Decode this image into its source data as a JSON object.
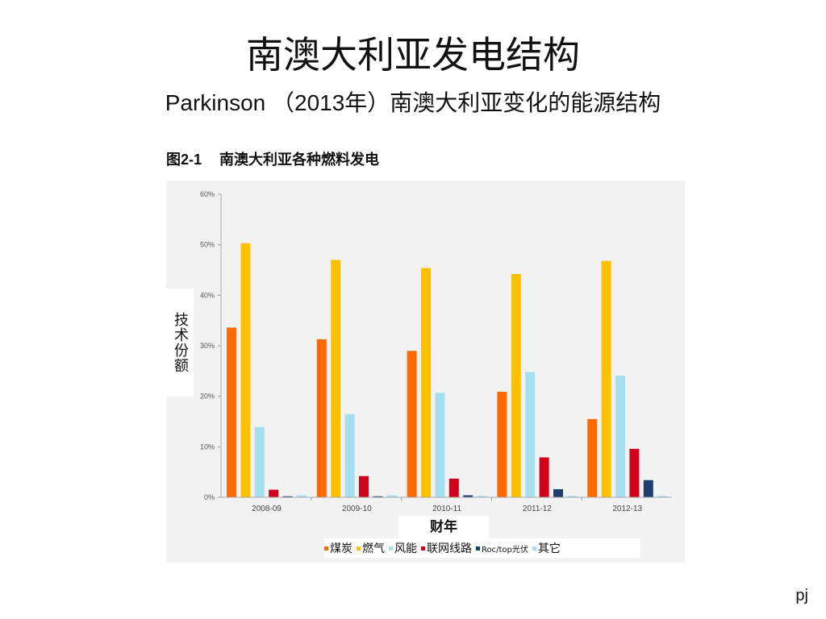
{
  "slide": {
    "title": "南澳大利亚发电结构",
    "subtitle": "Parkinson （2013年）南澳大利亚变化的能源结构",
    "page_mark": "pj"
  },
  "figure": {
    "number": "图2-1",
    "caption": "南澳大利亚各种燃料发电"
  },
  "chart_data": {
    "type": "bar",
    "categories": [
      "2008-09",
      "2009-10",
      "2010-11",
      "2011-12",
      "2012-13"
    ],
    "series": [
      {
        "name": "煤炭",
        "color": "#ff6a00",
        "values": [
          33.6,
          31.3,
          29.0,
          20.9,
          15.5
        ]
      },
      {
        "name": "燃气",
        "color": "#ffc000",
        "values": [
          50.3,
          47.0,
          45.4,
          44.2,
          46.8
        ]
      },
      {
        "name": "风能",
        "color": "#a6e0f0",
        "values": [
          13.9,
          16.5,
          20.7,
          24.8,
          24.1
        ]
      },
      {
        "name": "联网线路",
        "color": "#d0021b",
        "values": [
          1.5,
          4.2,
          3.7,
          7.9,
          9.6
        ]
      },
      {
        "name": "Roc/top光伏",
        "color": "#1f3e6e",
        "values": [
          0.2,
          0.2,
          0.4,
          1.6,
          3.4
        ]
      },
      {
        "name": "其它",
        "color": "#a6e0f0",
        "values": [
          0.4,
          0.4,
          0.3,
          0.3,
          0.3
        ]
      }
    ],
    "yticks": [
      "0%",
      "10%",
      "20%",
      "30%",
      "40%",
      "50%",
      "60%"
    ],
    "ylim": [
      0,
      60
    ],
    "ylabel": "技术份额",
    "xlabel": "财年",
    "legend_position": "bottom",
    "grid": false
  }
}
